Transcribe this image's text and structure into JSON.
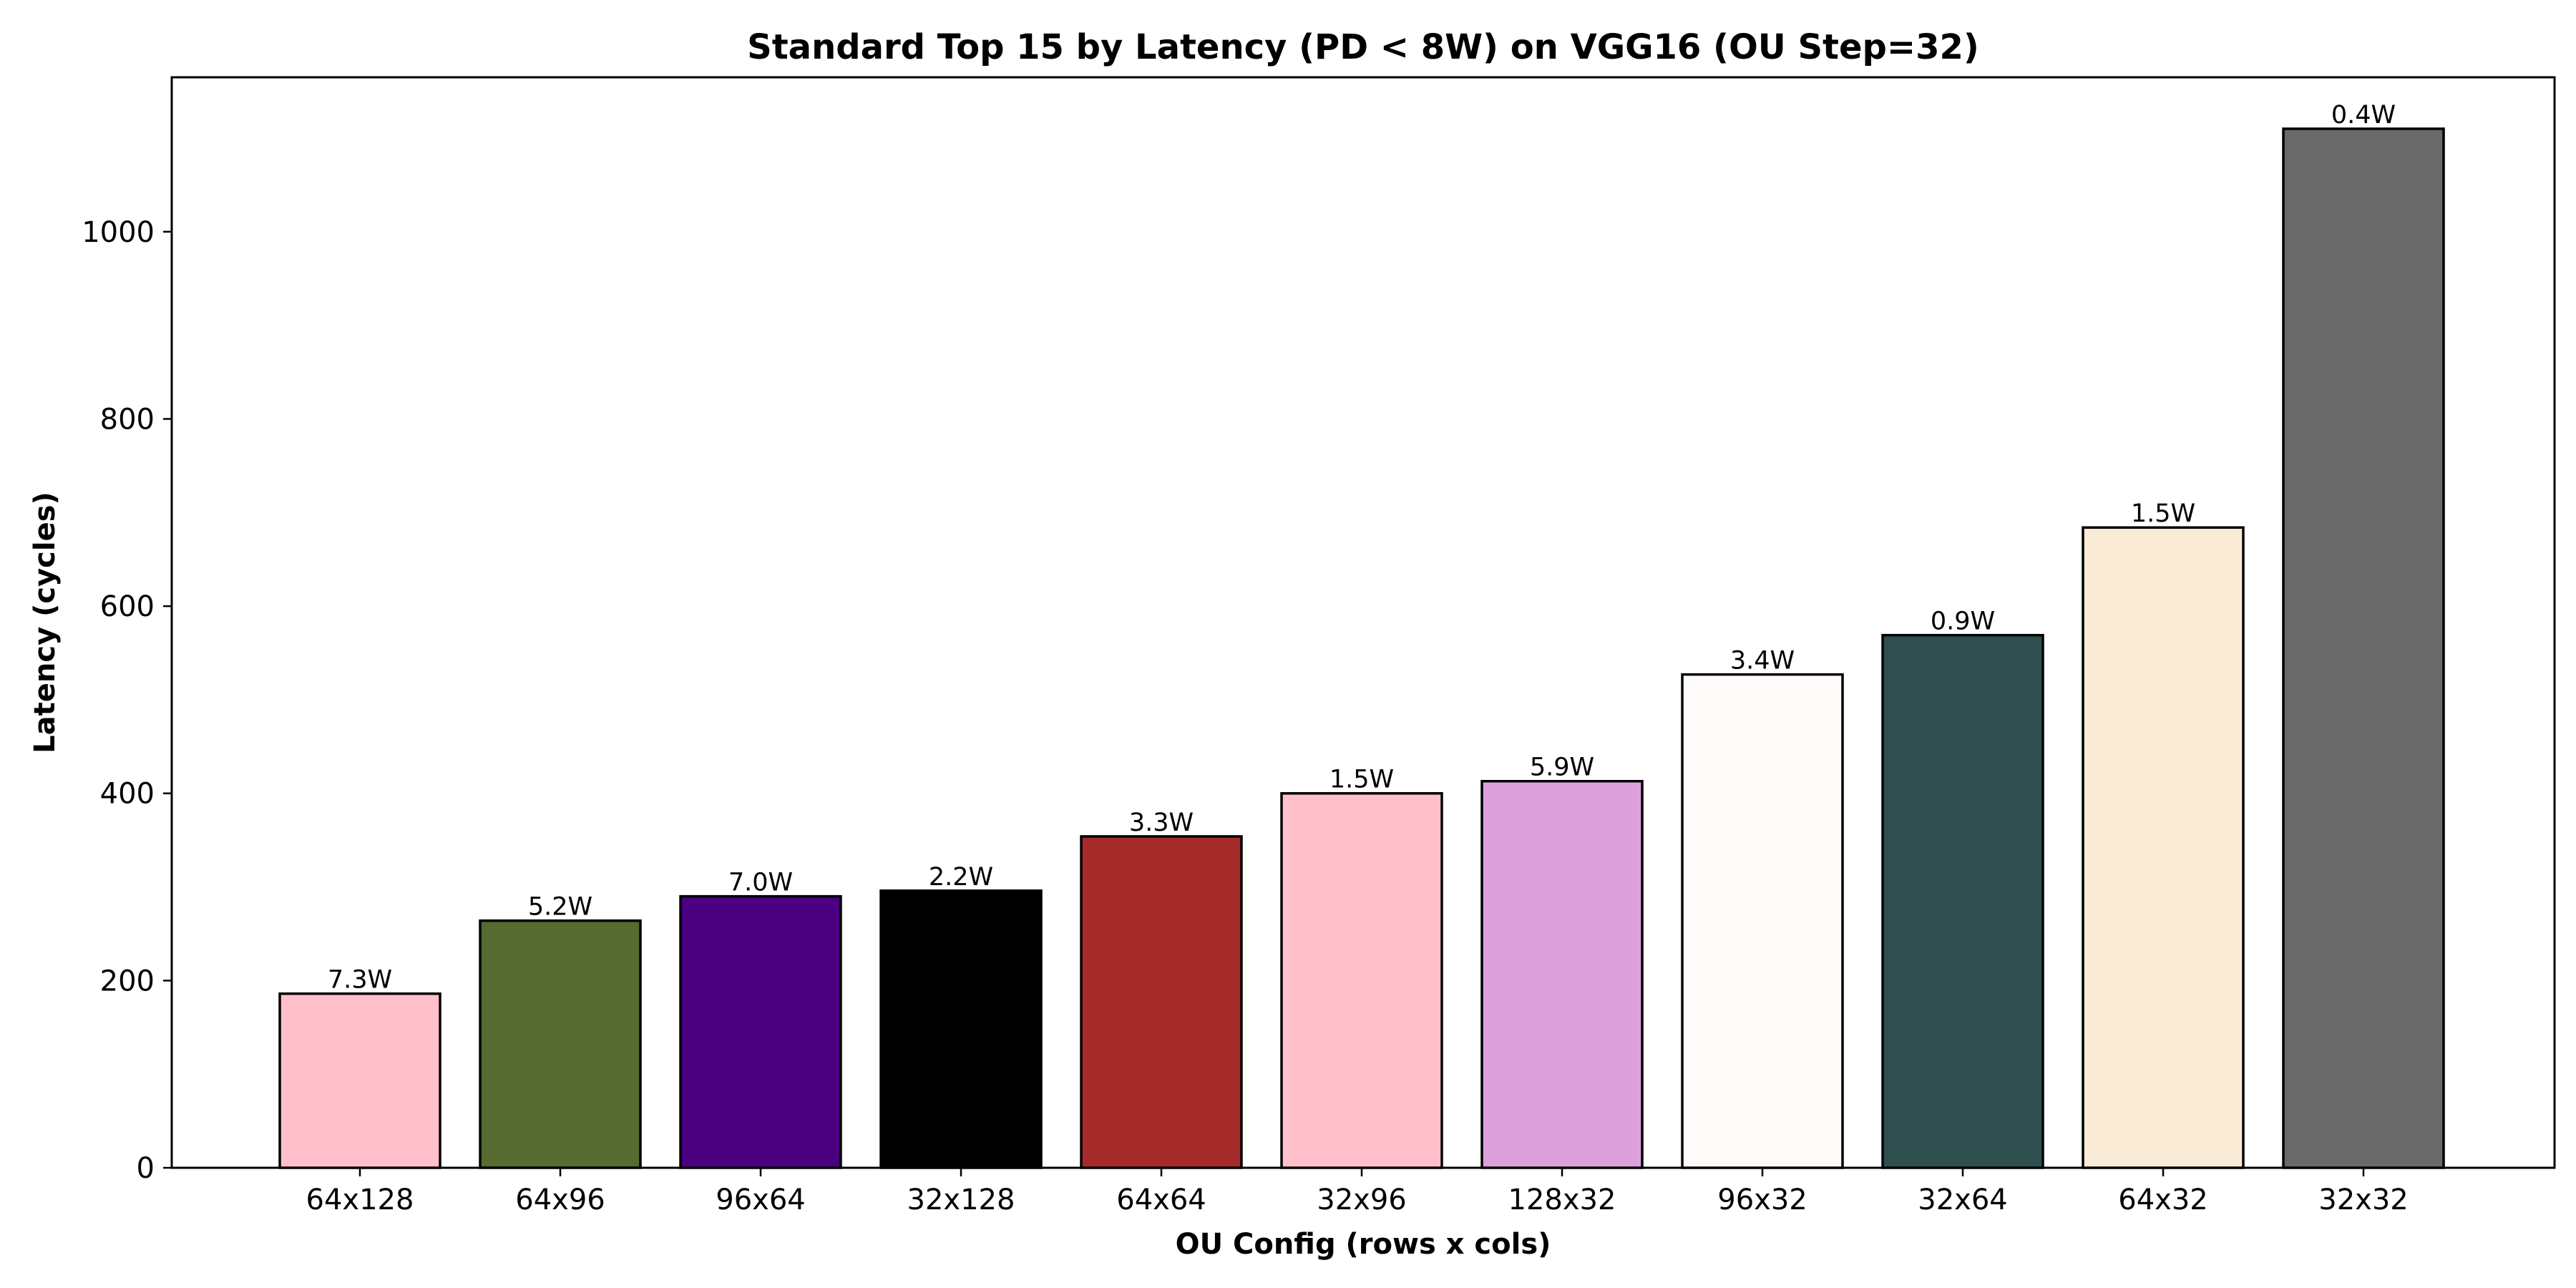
{
  "chart_data": {
    "type": "bar",
    "title": "Standard Top 15 by Latency (PD < 8W) on VGG16 (OU Step=32)",
    "xlabel": "OU Config (rows x cols)",
    "ylabel": "Latency (cycles)",
    "ylim": [
      0,
      1165
    ],
    "yticks": [
      0,
      200,
      400,
      600,
      800,
      1000
    ],
    "grid": false,
    "categories": [
      "64x128",
      "64x96",
      "96x64",
      "32x128",
      "64x64",
      "32x96",
      "128x32",
      "96x32",
      "32x64",
      "64x32",
      "32x32"
    ],
    "values": [
      186,
      264,
      290,
      296,
      354,
      400,
      413,
      527,
      569,
      684,
      1110
    ],
    "data_labels": [
      "7.3W",
      "5.2W",
      "7.0W",
      "2.2W",
      "3.3W",
      "1.5W",
      "5.9W",
      "3.4W",
      "0.9W",
      "1.5W",
      "0.4W"
    ],
    "colors": [
      "#ffc0cb",
      "#556b2f",
      "#4b0082",
      "#000000",
      "#a52a2a",
      "#ffc0cb",
      "#dda0dd",
      "#fffafa",
      "#2f4f4f",
      "#faebd7",
      "#696969"
    ]
  }
}
